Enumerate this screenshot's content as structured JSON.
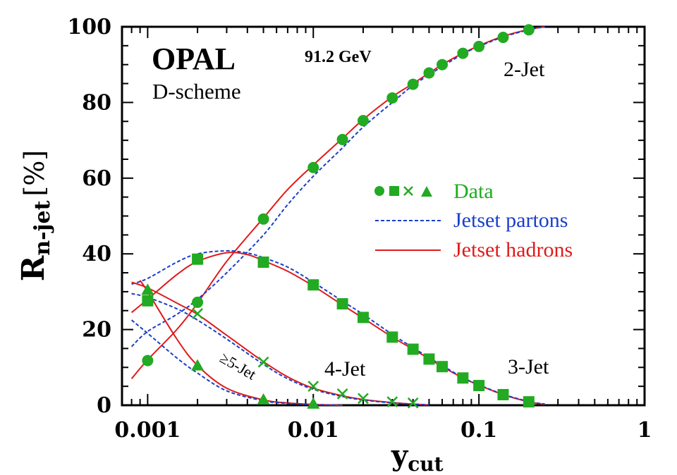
{
  "chart_data": {
    "type": "line",
    "xscale": "log",
    "xlim": [
      0.0007,
      1
    ],
    "ylim": [
      0,
      100
    ],
    "xlabel": "y",
    "xlabel_sub": "cut",
    "ylabel": "R",
    "ylabel_sub": "n-jet",
    "ylabel_unit": "[%]",
    "x_ticks": [
      0.001,
      0.01,
      0.1,
      1
    ],
    "x_tick_labels": [
      "0.001",
      "0.01",
      "0.1",
      "1"
    ],
    "y_ticks": [
      0,
      20,
      40,
      60,
      80,
      100
    ],
    "y_tick_labels": [
      "0",
      "20",
      "40",
      "60",
      "80",
      "100"
    ],
    "grid": false,
    "legend_position": "right",
    "legend": [
      {
        "label": "Data",
        "style": "markers",
        "color": "#22aa22"
      },
      {
        "label": "Jetset partons",
        "style": "dashed",
        "color": "#1a3fc9"
      },
      {
        "label": "Jetset hadrons",
        "style": "solid",
        "color": "#e01a1a"
      }
    ],
    "annotations": {
      "experiment": "OPAL",
      "energy": "91.2 GeV",
      "scheme": "D-scheme",
      "label_2jet": "2-Jet",
      "label_3jet": "3-Jet",
      "label_4jet": "4-Jet",
      "label_5jet": "≥5-Jet"
    },
    "data_series": [
      {
        "name": "2-Jet",
        "marker": "circle",
        "x": [
          0.001,
          0.002,
          0.005,
          0.01,
          0.015,
          0.02,
          0.03,
          0.04,
          0.05,
          0.06,
          0.08,
          0.1,
          0.14,
          0.2
        ],
        "y": [
          11.8,
          27.2,
          49.2,
          62.8,
          70.2,
          75.2,
          81.2,
          84.8,
          87.8,
          90,
          93,
          94.8,
          97.2,
          99.2
        ]
      },
      {
        "name": "3-Jet",
        "marker": "square",
        "x": [
          0.001,
          0.002,
          0.005,
          0.01,
          0.015,
          0.02,
          0.03,
          0.04,
          0.05,
          0.06,
          0.08,
          0.1,
          0.14,
          0.2
        ],
        "y": [
          27.6,
          38.6,
          37.8,
          31.8,
          26.8,
          23.2,
          18,
          14.8,
          12.2,
          10.2,
          7.2,
          5.2,
          2.8,
          0.9
        ]
      },
      {
        "name": "4-Jet",
        "marker": "cross",
        "x": [
          0.002,
          0.005,
          0.01,
          0.015,
          0.02,
          0.03,
          0.04
        ],
        "y": [
          24.2,
          11.4,
          5,
          3,
          1.8,
          0.9,
          0.6
        ]
      },
      {
        "name": "≥5-Jet",
        "marker": "triangle",
        "x": [
          0.001,
          0.002,
          0.005,
          0.01
        ],
        "y": [
          30.5,
          10.5,
          1.5,
          0.4
        ]
      }
    ],
    "curves": [
      {
        "name": "2-Jet hadrons",
        "style": "solid",
        "x": [
          0.0008,
          0.001,
          0.0015,
          0.002,
          0.003,
          0.005,
          0.007,
          0.01,
          0.015,
          0.02,
          0.03,
          0.04,
          0.06,
          0.08,
          0.1,
          0.14,
          0.2,
          0.25
        ],
        "y": [
          7,
          12,
          20,
          27,
          38,
          49.5,
          57,
          63.5,
          70.5,
          75.5,
          81.5,
          85,
          90,
          93,
          95,
          97.5,
          99.3,
          100
        ]
      },
      {
        "name": "2-Jet partons",
        "style": "dashed",
        "x": [
          0.0008,
          0.001,
          0.0015,
          0.002,
          0.003,
          0.005,
          0.007,
          0.01,
          0.015,
          0.02,
          0.03,
          0.04,
          0.06,
          0.08,
          0.1,
          0.14,
          0.2,
          0.25
        ],
        "y": [
          15.5,
          19.5,
          24,
          28,
          35,
          45,
          53,
          60.5,
          68,
          73.5,
          80,
          84.5,
          89.5,
          92.8,
          94.8,
          97.3,
          99.2,
          100
        ]
      },
      {
        "name": "3-Jet hadrons",
        "style": "solid",
        "x": [
          0.0008,
          0.001,
          0.0015,
          0.002,
          0.003,
          0.004,
          0.005,
          0.007,
          0.01,
          0.015,
          0.02,
          0.03,
          0.04,
          0.05,
          0.06,
          0.08,
          0.1,
          0.14,
          0.2,
          0.25
        ],
        "y": [
          24.5,
          28,
          34.5,
          38,
          40.3,
          39.8,
          38.2,
          35.4,
          31.5,
          26.5,
          23,
          18,
          14.8,
          12.3,
          10.2,
          7.2,
          5.3,
          2.8,
          0.9,
          0.2
        ]
      },
      {
        "name": "3-Jet partons",
        "style": "dashed",
        "x": [
          0.0008,
          0.001,
          0.0015,
          0.002,
          0.003,
          0.004,
          0.005,
          0.007,
          0.01,
          0.015,
          0.02,
          0.03,
          0.04,
          0.05,
          0.06,
          0.08,
          0.1,
          0.14,
          0.2,
          0.25
        ],
        "y": [
          32,
          33.5,
          37.8,
          40,
          40.8,
          40.2,
          39,
          36.5,
          32.5,
          27.5,
          24,
          18.7,
          15.2,
          12.6,
          10.5,
          7.3,
          5.4,
          2.9,
          1,
          0.3
        ]
      },
      {
        "name": "4-Jet hadrons",
        "style": "solid",
        "x": [
          0.0008,
          0.001,
          0.0015,
          0.002,
          0.003,
          0.005,
          0.007,
          0.01,
          0.015,
          0.02,
          0.03,
          0.04,
          0.05
        ],
        "y": [
          32.5,
          31,
          27,
          24,
          18.5,
          11.5,
          7.5,
          4.5,
          2.5,
          1.5,
          0.7,
          0.3,
          0.1
        ]
      },
      {
        "name": "4-Jet partons",
        "style": "dashed",
        "x": [
          0.0008,
          0.001,
          0.0015,
          0.002,
          0.003,
          0.005,
          0.007,
          0.01,
          0.015,
          0.02,
          0.03,
          0.04,
          0.05
        ],
        "y": [
          29.5,
          28.5,
          25.5,
          22.5,
          17.5,
          10.8,
          7,
          4.2,
          2.3,
          1.4,
          0.6,
          0.3,
          0.1
        ]
      },
      {
        "name": "≥5-Jet hadrons",
        "style": "solid",
        "x": [
          0.0009,
          0.001,
          0.0015,
          0.002,
          0.003,
          0.005,
          0.007,
          0.01,
          0.015
        ],
        "y": [
          33,
          30,
          17.5,
          10.5,
          4.5,
          1.4,
          0.6,
          0.2,
          0
        ]
      },
      {
        "name": "≥5-Jet partons",
        "style": "dashed",
        "x": [
          0.0008,
          0.001,
          0.0015,
          0.002,
          0.003,
          0.005,
          0.007,
          0.01,
          0.015
        ],
        "y": [
          22.5,
          19,
          12.5,
          8.5,
          3.8,
          1.2,
          0.5,
          0.2,
          0
        ]
      }
    ]
  }
}
